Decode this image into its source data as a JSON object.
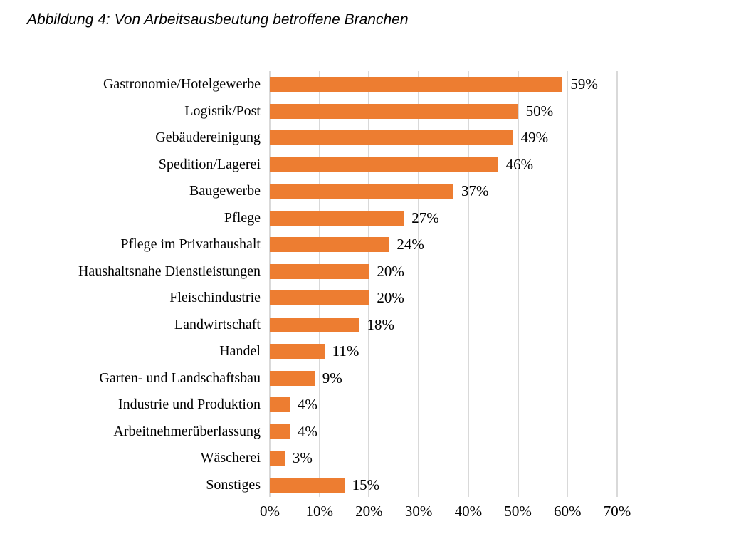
{
  "title": "Abbildung 4: Von Arbeitsausbeutung betroffene Branchen",
  "chart_data": {
    "type": "bar",
    "orientation": "horizontal",
    "title": "Abbildung 4: Von Arbeitsausbeutung betroffene Branchen",
    "categories": [
      "Gastronomie/Hotelgewerbe",
      "Logistik/Post",
      "Gebäudereinigung",
      "Spedition/Lagerei",
      "Baugewerbe",
      "Pflege",
      "Pflege im Privathaushalt",
      "Haushaltsnahe Dienstleistungen",
      "Fleischindustrie",
      "Landwirtschaft",
      "Handel",
      "Garten- und Landschaftsbau",
      "Industrie und Produktion",
      "Arbeitnehmerüberlassung",
      "Wäscherei",
      "Sonstiges"
    ],
    "values": [
      59,
      50,
      49,
      46,
      37,
      27,
      24,
      20,
      20,
      18,
      11,
      9,
      4,
      4,
      3,
      15
    ],
    "value_labels": [
      "59%",
      "50%",
      "49%",
      "46%",
      "37%",
      "27%",
      "24%",
      "20%",
      "20%",
      "18%",
      "11%",
      "9%",
      "4%",
      "4%",
      "3%",
      "15%"
    ],
    "xlabel": "",
    "ylabel": "",
    "xlim": [
      0,
      70
    ],
    "x_tick_labels": [
      "0%",
      "10%",
      "20%",
      "30%",
      "40%",
      "50%",
      "60%",
      "70%"
    ],
    "x_tick_values": [
      0,
      10,
      20,
      30,
      40,
      50,
      60,
      70
    ],
    "grid": "vertical gridlines on",
    "legend": "none",
    "bar_color": "#ED7D31",
    "gridline_color": "#D9D9D9",
    "text_color": "#000000"
  }
}
